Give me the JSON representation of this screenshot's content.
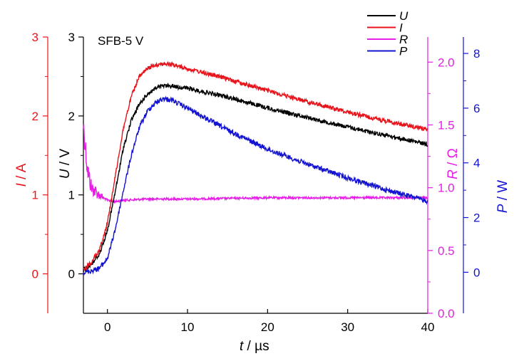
{
  "chart_data": {
    "type": "line",
    "annotation": "SFB-5 V",
    "xlabel": {
      "var": "t",
      "unit": " / µs"
    },
    "xlim": [
      -3,
      40
    ],
    "xticks": [
      "0",
      "10",
      "20",
      "30",
      "40"
    ],
    "axes": {
      "U": {
        "var": "U",
        "unit": " / V",
        "color": "#000000",
        "ylim": [
          -0.5,
          3
        ],
        "ticks": [
          "0",
          "1",
          "2",
          "3"
        ]
      },
      "I": {
        "var": "I",
        "unit": " / A",
        "color": "#e8141c",
        "ylim": [
          -0.5,
          3
        ],
        "ticks": [
          "0",
          "1",
          "2",
          "3"
        ]
      },
      "R": {
        "var": "R",
        "unit": " / Ω",
        "color": "#e61ee6",
        "ylim": [
          0,
          2.2
        ],
        "ticks": [
          "0.0",
          "0.5",
          "1.0",
          "1.5",
          "2.0"
        ]
      },
      "P": {
        "var": "P",
        "unit": " / W",
        "color": "#1414d2",
        "ylim": [
          -1.5,
          8.6
        ],
        "ticks": [
          "0",
          "2",
          "4",
          "6",
          "8"
        ]
      }
    },
    "legend": {
      "placement": "top-right",
      "entries": [
        "U",
        "I",
        "R",
        "P"
      ]
    },
    "series": [
      {
        "name": "U",
        "axis": "U",
        "color": "#000000",
        "x": [
          -3,
          -2,
          -1,
          0,
          1,
          2,
          3,
          4,
          5,
          6,
          7,
          8,
          10,
          15,
          20,
          25,
          30,
          35,
          40
        ],
        "y": [
          0.05,
          0.12,
          0.25,
          0.55,
          1.05,
          1.6,
          1.95,
          2.15,
          2.28,
          2.35,
          2.38,
          2.38,
          2.35,
          2.24,
          2.1,
          1.98,
          1.86,
          1.75,
          1.64
        ]
      },
      {
        "name": "I",
        "axis": "I",
        "color": "#e8141c",
        "x": [
          -3,
          -2,
          -1,
          0,
          1,
          2,
          3,
          4,
          5,
          6,
          7,
          8,
          10,
          15,
          20,
          25,
          30,
          35,
          40
        ],
        "y": [
          0.05,
          0.15,
          0.3,
          0.65,
          1.25,
          1.85,
          2.25,
          2.5,
          2.6,
          2.65,
          2.66,
          2.65,
          2.6,
          2.47,
          2.32,
          2.18,
          2.05,
          1.93,
          1.83
        ]
      },
      {
        "name": "R",
        "axis": "R",
        "color": "#e61ee6",
        "x": [
          -3,
          -2.5,
          -2,
          -1.5,
          -1,
          0,
          1,
          2,
          5,
          10,
          20,
          30,
          40
        ],
        "y": [
          1.5,
          1.15,
          1.0,
          0.97,
          0.94,
          0.9,
          0.89,
          0.9,
          0.91,
          0.91,
          0.92,
          0.92,
          0.92
        ]
      },
      {
        "name": "P",
        "axis": "P",
        "color": "#1414d2",
        "x": [
          -3,
          -2,
          -1,
          0,
          1,
          2,
          3,
          4,
          5,
          6,
          7,
          8,
          10,
          15,
          20,
          25,
          30,
          35,
          40
        ],
        "y": [
          0.0,
          0.05,
          0.15,
          0.5,
          1.6,
          3.0,
          4.3,
          5.3,
          5.9,
          6.2,
          6.35,
          6.3,
          6.0,
          5.2,
          4.5,
          3.95,
          3.45,
          3.0,
          2.6
        ]
      }
    ]
  }
}
